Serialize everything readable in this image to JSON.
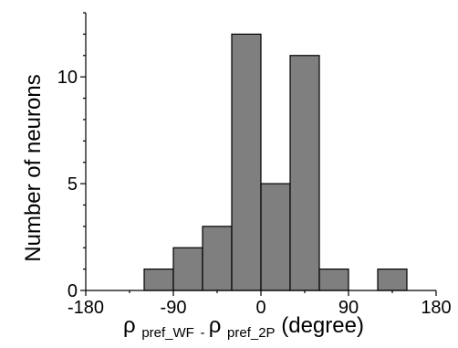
{
  "chart_data": {
    "type": "bar",
    "histogram": true,
    "bin_width": 30,
    "bins": [
      {
        "x0": -120,
        "x1": -90,
        "count": 1
      },
      {
        "x0": -90,
        "x1": -60,
        "count": 2
      },
      {
        "x0": -60,
        "x1": -30,
        "count": 3
      },
      {
        "x0": -30,
        "x1": 0,
        "count": 12
      },
      {
        "x0": 0,
        "x1": 30,
        "count": 5
      },
      {
        "x0": 30,
        "x1": 60,
        "count": 11
      },
      {
        "x0": 60,
        "x1": 90,
        "count": 1
      },
      {
        "x0": 90,
        "x1": 120,
        "count": 0
      },
      {
        "x0": 120,
        "x1": 150,
        "count": 1
      }
    ],
    "xlim": [
      -180,
      180
    ],
    "ylim": [
      0,
      13
    ],
    "xticks": [
      -180,
      -90,
      0,
      90,
      180
    ],
    "xtick_labels": [
      "-180",
      "-90",
      "0",
      "90",
      "180"
    ],
    "yticks": [
      0,
      5,
      10
    ],
    "ytick_labels": [
      "0",
      "5",
      "10"
    ],
    "ylabel": "Number of neurons",
    "xlabel": {
      "rho1": "ρ",
      "sub1": "pref_WF",
      "minus": " - ",
      "rho2": "ρ",
      "sub2": "pref_2P",
      "unit": " (degree)"
    },
    "grid": false,
    "colors": {
      "bar_fill": "#7f7f7f",
      "bar_edge": "#000000"
    }
  }
}
